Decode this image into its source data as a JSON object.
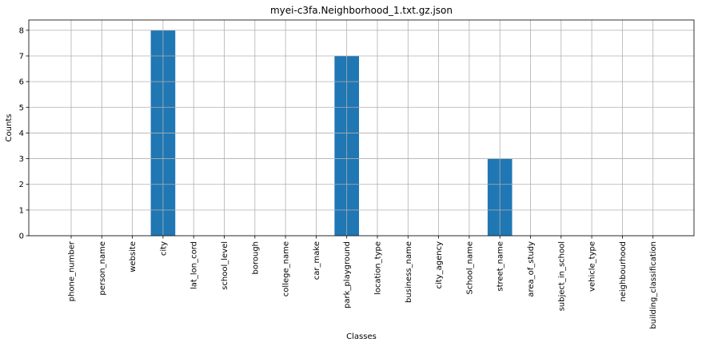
{
  "chart_data": {
    "type": "bar",
    "title": "myei-c3fa.Neighborhood_1.txt.gz.json",
    "xlabel": "Classes",
    "ylabel": "Counts",
    "ylim": [
      0,
      8.4
    ],
    "yticks": [
      0,
      1,
      2,
      3,
      4,
      5,
      6,
      7,
      8
    ],
    "grid": true,
    "bar_color": "#1f77b4",
    "categories": [
      "phone_number",
      "person_name",
      "website",
      "city",
      "lat_lon_cord",
      "school_level",
      "borough",
      "college_name",
      "car_make",
      "park_playground",
      "location_type",
      "business_name",
      "city_agency",
      "School_name",
      "street_name",
      "area_of_study",
      "subject_in_school",
      "vehicle_type",
      "neighbourhood",
      "building_classification"
    ],
    "values": [
      0,
      0,
      0,
      8,
      0,
      0,
      0,
      0,
      0,
      7,
      0,
      0,
      0,
      0,
      3,
      0,
      0,
      0,
      0,
      0
    ]
  }
}
